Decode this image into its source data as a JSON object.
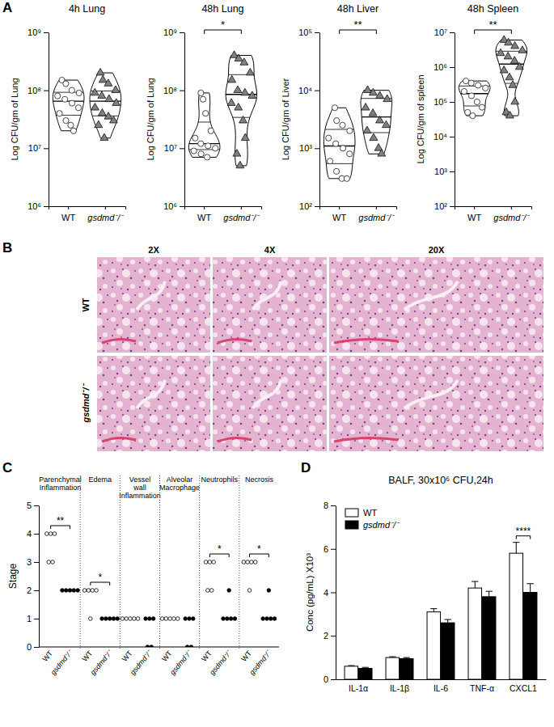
{
  "chart_data": [
    {
      "type": "violin",
      "panel_label": "A",
      "title": "4h Lung",
      "ylabel": "Log CFU/gm of Lung",
      "log": "y",
      "ylim": [
        1000000,
        1000000000
      ],
      "yticks": [
        {
          "value": 1000000,
          "label": "10⁶"
        },
        {
          "value": 10000000,
          "label": "10⁷"
        },
        {
          "value": 100000000,
          "label": "10⁸"
        },
        {
          "value": 1000000000,
          "label": "10⁹"
        }
      ],
      "series": [
        {
          "name": "WT",
          "color": "#ffffff",
          "marker": "circle",
          "values": [
            150000000,
            130000000,
            100000000,
            90000000,
            80000000,
            70000000,
            60000000,
            50000000,
            40000000,
            30000000,
            25000000,
            20000000
          ]
        },
        {
          "name": "gsdmd⁻/⁻",
          "color": "#808080",
          "marker": "triangle",
          "values": [
            200000000,
            150000000,
            130000000,
            100000000,
            90000000,
            80000000,
            70000000,
            60000000,
            50000000,
            40000000,
            35000000,
            30000000,
            25000000,
            15000000
          ]
        }
      ]
    },
    {
      "type": "violin",
      "title": "48h Lung",
      "ylabel": "Log CFU/gm of Lung",
      "log": "y",
      "ylim": [
        1000000,
        1000000000
      ],
      "yticks": [
        {
          "value": 1000000,
          "label": "10⁶"
        },
        {
          "value": 10000000,
          "label": "10⁷"
        },
        {
          "value": 100000000,
          "label": "10⁸"
        },
        {
          "value": 1000000000,
          "label": "10⁹"
        }
      ],
      "series": [
        {
          "name": "WT",
          "color": "#ffffff",
          "marker": "circle",
          "values": [
            90000000,
            70000000,
            40000000,
            20000000,
            15000000,
            12000000,
            11000000,
            10000000,
            9000000,
            8000000,
            7000000
          ]
        },
        {
          "name": "gsdmd⁻/⁻",
          "color": "#808080",
          "marker": "triangle",
          "values": [
            400000000,
            350000000,
            300000000,
            200000000,
            150000000,
            100000000,
            90000000,
            80000000,
            60000000,
            50000000,
            30000000,
            15000000,
            8000000,
            5000000
          ]
        }
      ],
      "annotations": [
        "*"
      ]
    },
    {
      "type": "violin",
      "title": "48h Liver",
      "ylabel": "Log CFU/gm of Liver",
      "log": "y",
      "ylim": [
        100,
        100000
      ],
      "yticks": [
        {
          "value": 100,
          "label": "10²"
        },
        {
          "value": 1000,
          "label": "10³"
        },
        {
          "value": 10000,
          "label": "10⁴"
        },
        {
          "value": 100000,
          "label": "10⁵"
        }
      ],
      "series": [
        {
          "name": "WT",
          "color": "#ffffff",
          "marker": "circle",
          "values": [
            5000,
            3000,
            2500,
            2000,
            1500,
            1200,
            1000,
            800,
            600,
            400,
            300,
            300
          ]
        },
        {
          "name": "gsdmd⁻/⁻",
          "color": "#808080",
          "marker": "triangle",
          "values": [
            10000,
            9000,
            8000,
            7000,
            5000,
            4000,
            3000,
            2500,
            2000,
            1500,
            1000,
            800
          ]
        }
      ],
      "annotations": [
        "**"
      ]
    },
    {
      "type": "violin",
      "title": "48h Spleen",
      "ylabel": "Log CFU/gm of spleen",
      "log": "y",
      "ylim": [
        100,
        10000000
      ],
      "yticks": [
        {
          "value": 100,
          "label": "10²"
        },
        {
          "value": 1000,
          "label": "10³"
        },
        {
          "value": 10000,
          "label": "10⁴"
        },
        {
          "value": 100000,
          "label": "10⁵"
        },
        {
          "value": 1000000,
          "label": "10⁶"
        },
        {
          "value": 10000000,
          "label": "10⁷"
        }
      ],
      "series": [
        {
          "name": "WT",
          "color": "#ffffff",
          "marker": "circle",
          "values": [
            400000,
            350000,
            300000,
            250000,
            200000,
            150000,
            100000,
            70000,
            50000,
            40000
          ]
        },
        {
          "name": "gsdmd⁻/⁻",
          "color": "#808080",
          "marker": "triangle",
          "values": [
            6000000,
            5000000,
            4000000,
            3000000,
            2500000,
            2000000,
            1500000,
            1000000,
            800000,
            500000,
            300000,
            100000,
            50000,
            40000
          ]
        }
      ],
      "annotations": [
        "**"
      ]
    },
    {
      "type": "image_grid",
      "panel_label": "B",
      "columns": [
        "2X",
        "4X",
        "20X"
      ],
      "rows": [
        "WT",
        "gsdmd⁻/⁻"
      ]
    },
    {
      "type": "dot",
      "panel_label": "C",
      "ylabel": "Stage",
      "ylim": [
        0,
        5
      ],
      "yticks": [
        0,
        1,
        2,
        3,
        4,
        5
      ],
      "categories": [
        "Parenchymal Inflammation",
        "Edema",
        "Vessel wall Inflammation",
        "Alveolar Macrophage",
        "Neutrophils",
        "Necrosis"
      ],
      "series": [
        {
          "name": "WT",
          "color": "#ffffff",
          "marker": "circle",
          "values": [
            [
              4,
              4,
              4,
              3,
              3
            ],
            [
              2,
              2,
              2,
              2,
              1
            ],
            [
              1,
              1,
              1,
              1,
              1
            ],
            [
              1,
              1,
              1,
              1,
              1
            ],
            [
              3,
              3,
              3,
              2,
              2
            ],
            [
              3,
              3,
              3,
              3,
              2
            ]
          ]
        },
        {
          "name": "gsdmd⁻/⁻",
          "color": "#000000",
          "marker": "circle",
          "values": [
            [
              2,
              2,
              2,
              2,
              2
            ],
            [
              1,
              1,
              1,
              1,
              1
            ],
            [
              1,
              1,
              1,
              0,
              0
            ],
            [
              1,
              1,
              1,
              0,
              0
            ],
            [
              2,
              1,
              1,
              1,
              1
            ],
            [
              2,
              1,
              1,
              1,
              1
            ]
          ]
        }
      ],
      "annotations": [
        "**",
        "*",
        null,
        null,
        "*",
        "*"
      ]
    },
    {
      "type": "bar",
      "panel_label": "D",
      "title": "BALF, 30x10⁶ CFU,24h",
      "ylabel": "Conc (pg/mL) X10³",
      "ylim": [
        0,
        8
      ],
      "yticks": [
        0,
        2,
        4,
        6,
        8
      ],
      "legend": "top-left",
      "categories": [
        "IL-1α",
        "IL-1β",
        "IL-6",
        "TNF-α",
        "CXCL1"
      ],
      "series": [
        {
          "name": "WT",
          "color": "#ffffff",
          "values": [
            0.6,
            1.0,
            3.1,
            4.2,
            5.8
          ],
          "errors": [
            0.03,
            0.04,
            0.15,
            0.3,
            0.5
          ]
        },
        {
          "name": "gsdmd⁻/⁻",
          "color": "#000000",
          "values": [
            0.5,
            0.95,
            2.6,
            3.8,
            4.0
          ],
          "errors": [
            0.05,
            0.05,
            0.15,
            0.25,
            0.4
          ]
        }
      ],
      "annotations": [
        null,
        null,
        null,
        null,
        "****"
      ]
    }
  ]
}
